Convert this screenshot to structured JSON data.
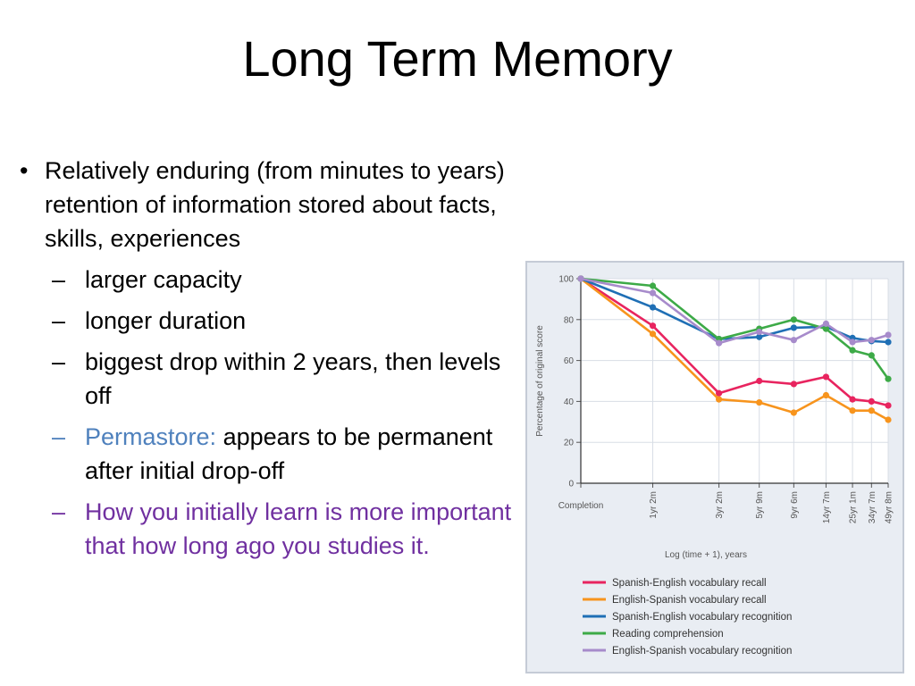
{
  "slide": {
    "title": "Long Term Memory",
    "bullet_main": "Relatively enduring (from minutes to years) retention of information stored about facts, skills, experiences",
    "sub_1": "larger capacity",
    "sub_2": "longer duration",
    "sub_3": "biggest drop within 2 years, then levels off",
    "sub_4_term": "Permastore:",
    "sub_4_text": " appears to be permanent after initial drop-off",
    "sub_5": "How you initially learn is more important that how long ago you studies it.",
    "bullet_glyph": "•",
    "dash_glyph": "–",
    "colors": {
      "permastore": "#4f81bd",
      "emphasis": "#7030a0"
    }
  },
  "chart_data": {
    "type": "line",
    "ylabel": "Percentage of original score",
    "xlabel": "Log (time + 1), years",
    "ylim": [
      0,
      100
    ],
    "yticks": [
      "0",
      "20",
      "40",
      "60",
      "80",
      "100"
    ],
    "x_positions": [
      0,
      1.25,
      2.4,
      3.1,
      3.7,
      4.26,
      4.72,
      5.05,
      5.34
    ],
    "x_labels": [
      "Completion",
      "1yr 2m",
      "3yr 2m",
      "5yr 9m",
      "9yr 6m",
      "14yr 7m",
      "25yr 1m",
      "34yr 7m",
      "49yr 8m"
    ],
    "series": [
      {
        "name": "Spanish-English vocabulary recall",
        "color": "#e8245f",
        "values": [
          100,
          77,
          44,
          50,
          48.5,
          52,
          41,
          40,
          38
        ]
      },
      {
        "name": "English-Spanish vocabulary recall",
        "color": "#f7941d",
        "values": [
          100,
          73,
          41,
          39.5,
          34.5,
          43,
          35.5,
          35.5,
          31
        ]
      },
      {
        "name": "Spanish-English vocabulary recognition",
        "color": "#1f6fb5",
        "values": [
          100,
          86,
          70.5,
          71.5,
          76,
          76.5,
          71,
          69.5,
          69
        ]
      },
      {
        "name": "Reading comprehension",
        "color": "#3daa47",
        "values": [
          100,
          96.5,
          70.5,
          75.5,
          80,
          75.5,
          65,
          62.5,
          51
        ]
      },
      {
        "name": "English-Spanish vocabulary recognition",
        "color": "#a78bcb",
        "values": [
          100,
          93,
          68.5,
          74,
          70,
          78,
          69,
          70,
          72.5
        ]
      }
    ]
  }
}
